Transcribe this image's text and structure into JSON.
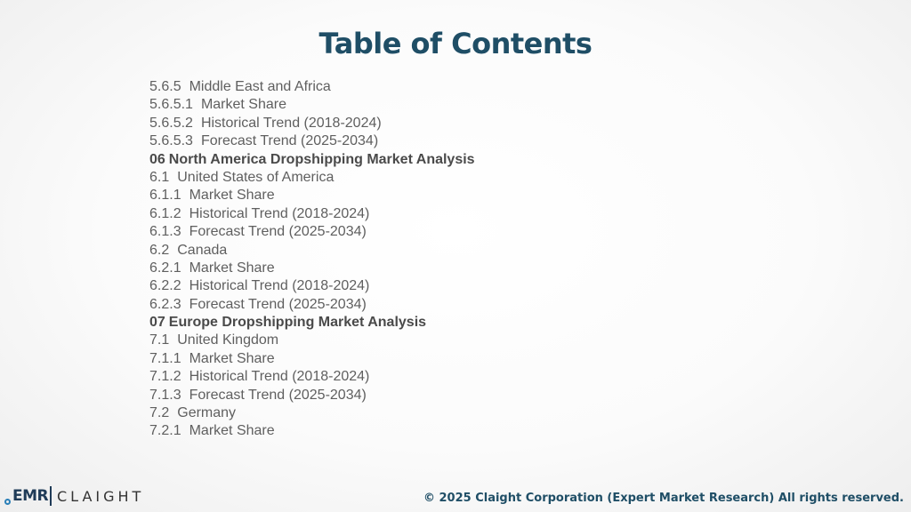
{
  "slide": {
    "title": "Table of Contents",
    "entries": [
      {
        "num": "5.6.5",
        "text": "Middle East and Africa",
        "heading": false
      },
      {
        "num": "5.6.5.1",
        "text": "Market Share",
        "heading": false
      },
      {
        "num": "5.6.5.2",
        "text": "Historical Trend (2018-2024)",
        "heading": false
      },
      {
        "num": "5.6.5.3",
        "text": "Forecast Trend (2025-2034)",
        "heading": false
      },
      {
        "num": "06",
        "text": "North America Dropshipping Market Analysis",
        "heading": true
      },
      {
        "num": "6.1",
        "text": "United States of America",
        "heading": false
      },
      {
        "num": "6.1.1",
        "text": "Market Share",
        "heading": false
      },
      {
        "num": "6.1.2",
        "text": "Historical Trend (2018-2024)",
        "heading": false
      },
      {
        "num": "6.1.3",
        "text": "Forecast Trend (2025-2034)",
        "heading": false
      },
      {
        "num": "6.2",
        "text": "Canada",
        "heading": false
      },
      {
        "num": "6.2.1",
        "text": "Market Share",
        "heading": false
      },
      {
        "num": "6.2.2",
        "text": "Historical Trend (2018-2024)",
        "heading": false
      },
      {
        "num": "6.2.3",
        "text": "Forecast Trend (2025-2034)",
        "heading": false
      },
      {
        "num": "07",
        "text": "Europe Dropshipping Market Analysis",
        "heading": true
      },
      {
        "num": "7.1",
        "text": "United Kingdom",
        "heading": false
      },
      {
        "num": "7.1.1",
        "text": "Market Share",
        "heading": false
      },
      {
        "num": "7.1.2",
        "text": "Historical Trend (2018-2024)",
        "heading": false
      },
      {
        "num": "7.1.3",
        "text": "Forecast Trend (2025-2034)",
        "heading": false
      },
      {
        "num": "7.2",
        "text": "Germany",
        "heading": false
      },
      {
        "num": "7.2.1",
        "text": "Market Share",
        "heading": false
      }
    ]
  },
  "footer": {
    "logo_left": "EMR",
    "logo_right": "CLAIGHT",
    "copyright": "© 2025 Claight Corporation (Expert Market Research) All rights reserved."
  }
}
